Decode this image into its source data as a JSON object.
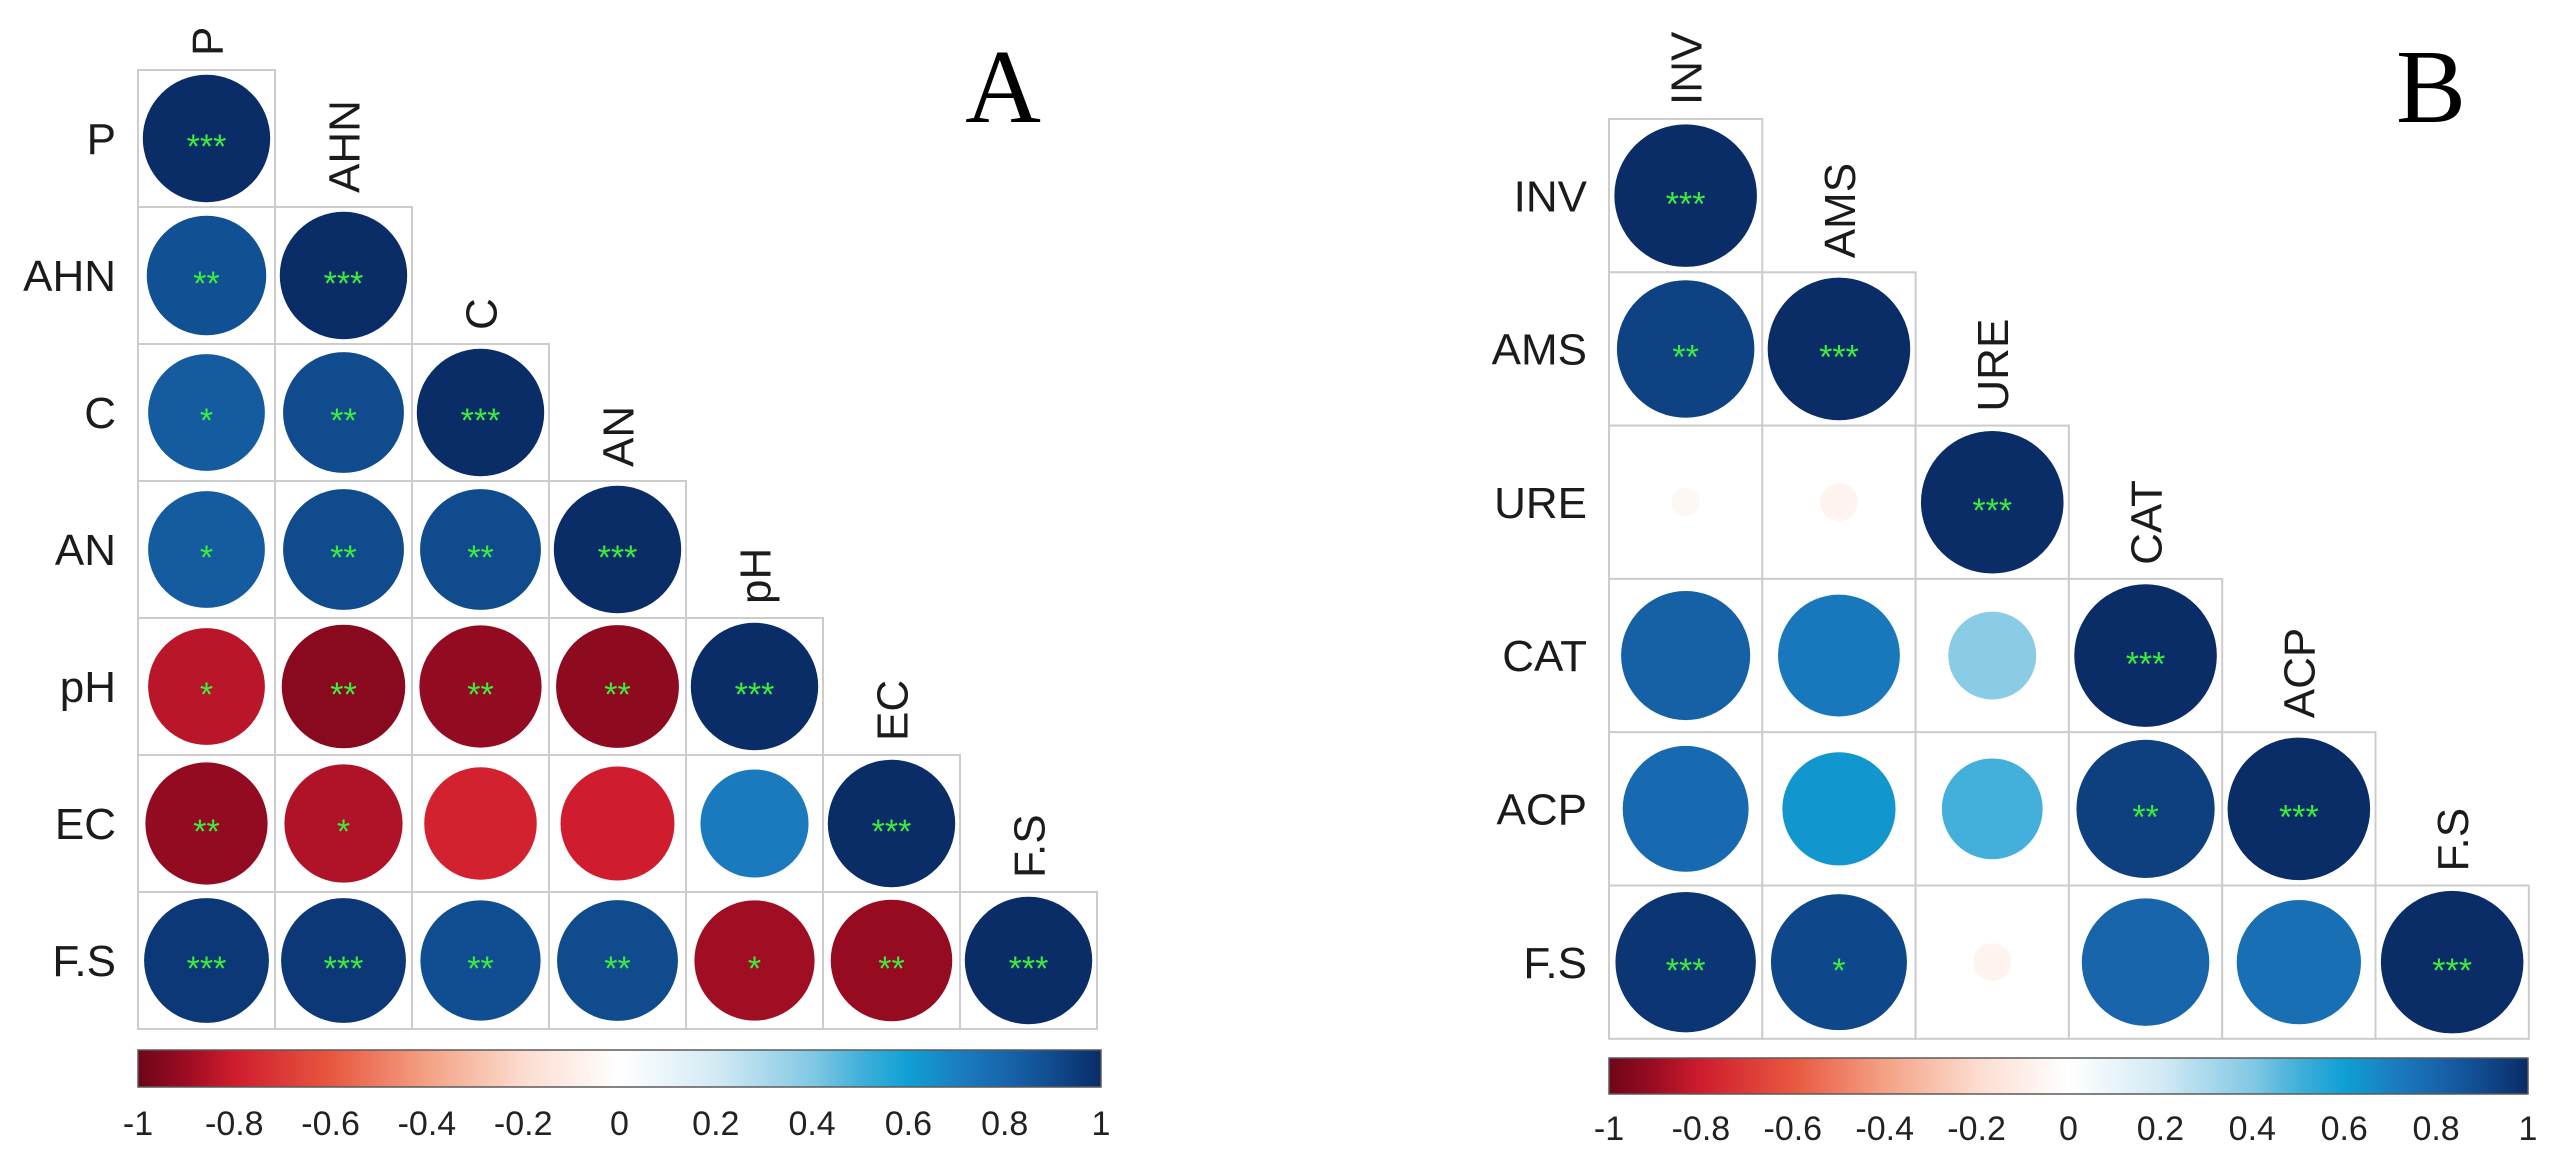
{
  "chart_data": [
    {
      "type": "heatmap",
      "panel_label": "A",
      "variables": [
        "P",
        "AHN",
        "C",
        "AN",
        "pH",
        "EC",
        "F.S"
      ],
      "correlations": [
        [
          1
        ],
        [
          0.88,
          1
        ],
        [
          0.84,
          0.9,
          1
        ],
        [
          0.84,
          0.9,
          0.9,
          1
        ],
        [
          -0.84,
          -0.94,
          -0.92,
          -0.93,
          1
        ],
        [
          -0.92,
          -0.86,
          -0.78,
          -0.8,
          0.72,
          1
        ],
        [
          0.96,
          0.96,
          0.89,
          0.9,
          -0.89,
          -0.91,
          1
        ]
      ],
      "significance": [
        [
          "***"
        ],
        [
          "**",
          "***"
        ],
        [
          "*",
          "**",
          "***"
        ],
        [
          "*",
          "**",
          "**",
          "***"
        ],
        [
          "*",
          "**",
          "**",
          "**",
          "***"
        ],
        [
          "**",
          "*",
          null,
          null,
          null,
          "***"
        ],
        [
          "***",
          "***",
          "**",
          "**",
          "*",
          "**",
          "***"
        ]
      ],
      "colorbar": {
        "min": -1,
        "max": 1,
        "ticks": [
          -1,
          -0.8,
          -0.6,
          -0.4,
          -0.2,
          0,
          0.2,
          0.4,
          0.6,
          0.8,
          1
        ],
        "tick_labels": [
          "-1",
          "-0.8",
          "-0.6",
          "-0.4",
          "-0.2",
          "0",
          "0.2",
          "0.4",
          "0.6",
          "0.8",
          "1"
        ]
      }
    },
    {
      "type": "heatmap",
      "panel_label": "B",
      "variables": [
        "INV",
        "AMS",
        "URE",
        "CAT",
        "ACP",
        "F.S"
      ],
      "correlations": [
        [
          1
        ],
        [
          0.93,
          1
        ],
        [
          -0.04,
          -0.07,
          1
        ],
        [
          0.82,
          0.73,
          0.38,
          1
        ],
        [
          0.78,
          0.63,
          0.5,
          0.94,
          1
        ],
        [
          0.97,
          0.91,
          -0.07,
          0.8,
          0.76,
          1
        ]
      ],
      "significance": [
        [
          "***"
        ],
        [
          "**",
          "***"
        ],
        [
          null,
          null,
          "***"
        ],
        [
          null,
          null,
          null,
          "***"
        ],
        [
          null,
          null,
          null,
          "**",
          "***"
        ],
        [
          "***",
          "*",
          null,
          null,
          null,
          "***"
        ]
      ],
      "colorbar": {
        "min": -1,
        "max": 1,
        "ticks": [
          -1,
          -0.8,
          -0.6,
          -0.4,
          -0.2,
          0,
          0.2,
          0.4,
          0.6,
          0.8,
          1
        ],
        "tick_labels": [
          "-1",
          "-0.8",
          "-0.6",
          "-0.4",
          "-0.2",
          "0",
          "0.2",
          "0.4",
          "0.6",
          "0.8",
          "1"
        ]
      }
    }
  ],
  "color_scale": {
    "stops": [
      {
        "value": -1,
        "color": "#6f0618"
      },
      {
        "value": -0.9,
        "color": "#9b0c22"
      },
      {
        "value": -0.8,
        "color": "#cf1c2e"
      },
      {
        "value": -0.6,
        "color": "#e8573f"
      },
      {
        "value": -0.4,
        "color": "#f4a184"
      },
      {
        "value": -0.2,
        "color": "#fcdccf"
      },
      {
        "value": 0,
        "color": "#ffffff"
      },
      {
        "value": 0.2,
        "color": "#d3eaf4"
      },
      {
        "value": 0.4,
        "color": "#82c8e4"
      },
      {
        "value": 0.5,
        "color": "#42b0da"
      },
      {
        "value": 0.6,
        "color": "#0fa0d3"
      },
      {
        "value": 0.7,
        "color": "#1a7fc1"
      },
      {
        "value": 0.8,
        "color": "#1865ac"
      },
      {
        "value": 0.9,
        "color": "#104b8e"
      },
      {
        "value": 1,
        "color": "#0a2c67"
      }
    ]
  },
  "significance_color": "#3ded3d",
  "grid_color": "#cccccc"
}
